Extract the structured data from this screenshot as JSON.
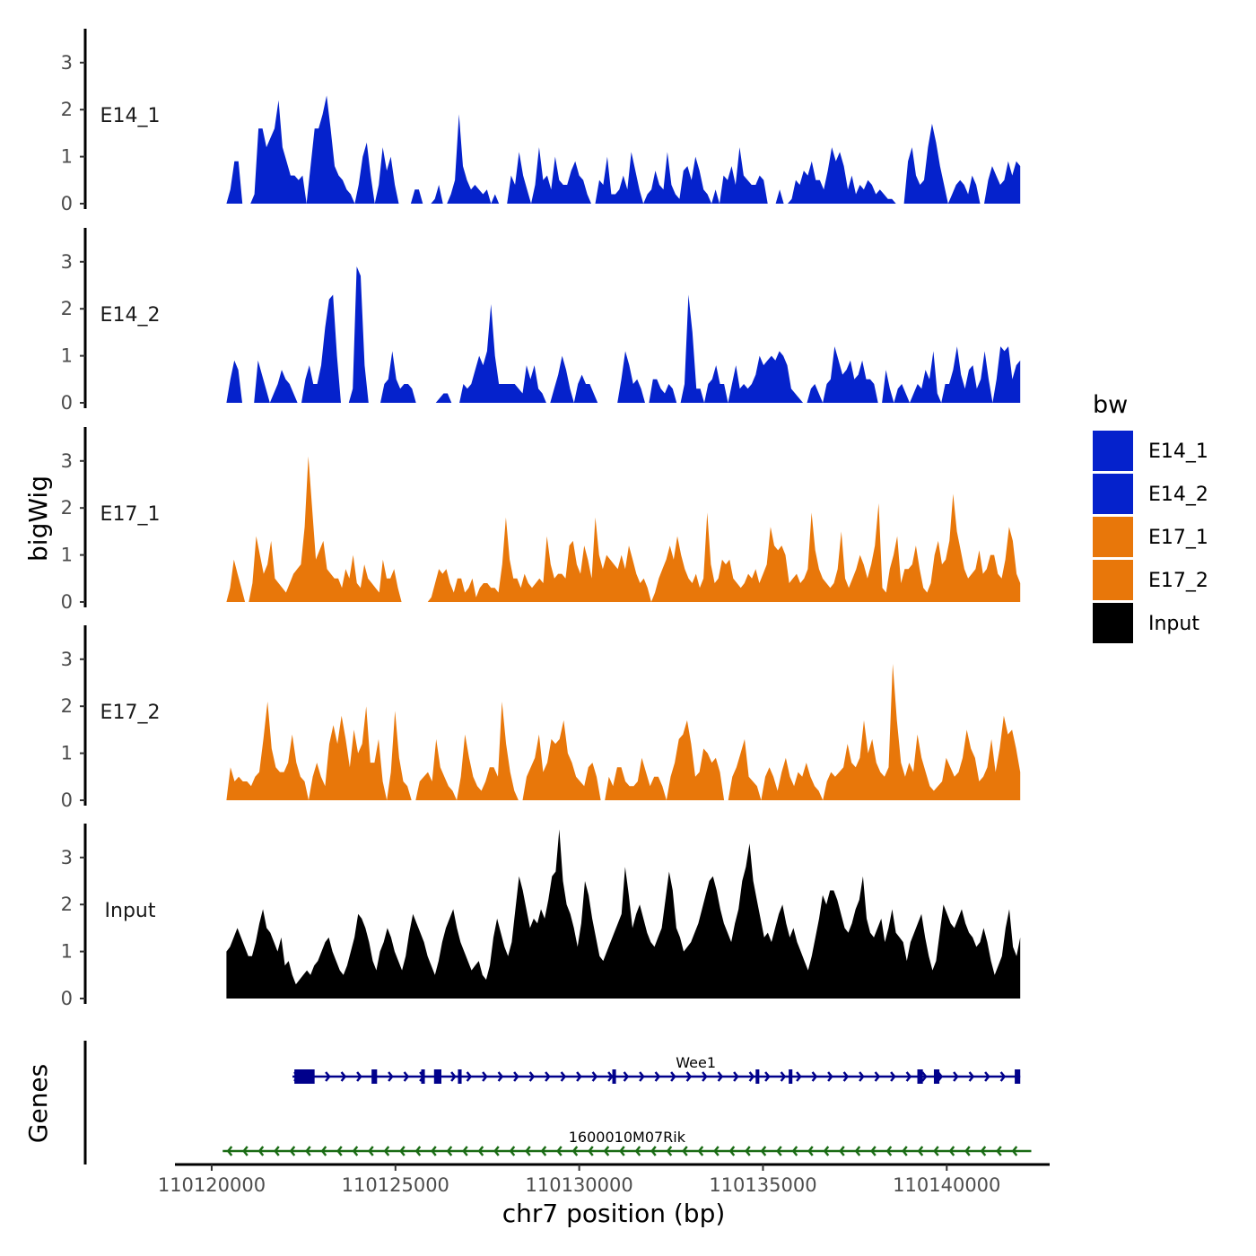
{
  "chart_data": {
    "type": "area",
    "ylabel": "bigWig",
    "xlabel": "chr7 position (bp)",
    "genes_panel_label": "Genes",
    "xlim": [
      110119000,
      110142800
    ],
    "x_ticks": [
      110120000,
      110125000,
      110130000,
      110135000,
      110140000
    ],
    "x_tick_labels": [
      "110120000",
      "110125000",
      "110130000",
      "110135000",
      "110140000"
    ],
    "ylim": [
      0,
      3.8
    ],
    "y_ticks": [
      0,
      1,
      2,
      3
    ],
    "y_tick_labels": [
      "0",
      "1",
      "2",
      "3"
    ],
    "signal_range": [
      110120400,
      110142000
    ],
    "legend": {
      "title": "bw",
      "entries": [
        {
          "name": "E14_1",
          "color": "#0522CC"
        },
        {
          "name": "E14_2",
          "color": "#0522CC"
        },
        {
          "name": "E17_1",
          "color": "#E8770A"
        },
        {
          "name": "E17_2",
          "color": "#E8770A"
        },
        {
          "name": "Input",
          "color": "#000000"
        }
      ]
    },
    "series": [
      {
        "name": "E14_1",
        "color": "#0522CC",
        "values": [
          0,
          0.3,
          0.9,
          0.9,
          0,
          0,
          0,
          0.2,
          1.6,
          1.6,
          1.2,
          1.4,
          1.6,
          2.2,
          1.2,
          0.9,
          0.6,
          0.6,
          0.5,
          0.6,
          0,
          0.8,
          1.6,
          1.6,
          1.9,
          2.3,
          1.6,
          0.8,
          0.6,
          0.5,
          0.3,
          0.2,
          0,
          0.4,
          1,
          1.3,
          0.6,
          0,
          0.4,
          1.2,
          0.7,
          1,
          0.4,
          0,
          0,
          0,
          0,
          0.3,
          0.3,
          0,
          0,
          0,
          0.1,
          0.4,
          0,
          0,
          0.2,
          0.5,
          1.9,
          0.8,
          0.5,
          0.3,
          0.4,
          0.3,
          0.2,
          0.3,
          0,
          0.2,
          0,
          0,
          0,
          0.6,
          0.4,
          1.1,
          0.6,
          0.3,
          0,
          0.4,
          1.2,
          0.5,
          0.6,
          0.3,
          1,
          0.5,
          0.4,
          0.4,
          0.7,
          0.9,
          0.6,
          0.5,
          0.2,
          0,
          0,
          0.5,
          0.4,
          1,
          0.2,
          0.2,
          0.3,
          0.6,
          0.3,
          1.1,
          0.7,
          0.3,
          0,
          0.2,
          0.3,
          0.7,
          0.4,
          0.3,
          1.1,
          0.4,
          0.2,
          0.1,
          0.7,
          0.8,
          0.5,
          1,
          0.7,
          0.3,
          0.2,
          0,
          0.3,
          0,
          0.6,
          0.5,
          0.8,
          0.4,
          1.2,
          0.6,
          0.5,
          0.4,
          0.4,
          0.6,
          0.5,
          0,
          0,
          0,
          0.3,
          0,
          0,
          0.1,
          0.5,
          0.4,
          0.7,
          0.6,
          0.9,
          0.5,
          0.5,
          0.3,
          0.7,
          1.2,
          0.9,
          1.1,
          0.8,
          0.3,
          0.6,
          0.2,
          0.4,
          0.3,
          0.5,
          0.4,
          0.2,
          0.3,
          0.2,
          0.1,
          0.1,
          0,
          0,
          0,
          0.9,
          1.2,
          0.6,
          0.4,
          0.5,
          1.2,
          1.7,
          1.3,
          0.8,
          0.4,
          0,
          0.2,
          0.4,
          0.5,
          0.4,
          0.2,
          0.6,
          0.4,
          0,
          0,
          0.5,
          0.8,
          0.6,
          0.4,
          0.5,
          0.9,
          0.6,
          0.9,
          0.8
        ]
      },
      {
        "name": "E14_2",
        "color": "#0522CC",
        "values": [
          0,
          0.5,
          0.9,
          0.7,
          0,
          0,
          0,
          0,
          0.9,
          0.6,
          0.3,
          0,
          0.2,
          0.4,
          0.7,
          0.5,
          0.4,
          0.2,
          0,
          0,
          0.5,
          0.8,
          0.4,
          0.4,
          0.8,
          1.6,
          2.2,
          2.3,
          1,
          0,
          0,
          0,
          0.3,
          2.9,
          2.7,
          0.8,
          0,
          0,
          0,
          0,
          0.4,
          0.5,
          1.1,
          0.5,
          0.3,
          0.4,
          0.4,
          0.3,
          0,
          0,
          0,
          0,
          0,
          0,
          0.1,
          0.2,
          0.2,
          0,
          0,
          0,
          0.4,
          0.3,
          0.4,
          0.7,
          1,
          0.8,
          1.1,
          2.1,
          1,
          0.4,
          0.4,
          0.4,
          0.4,
          0.4,
          0.3,
          0.2,
          0.8,
          0.5,
          0.8,
          0.3,
          0.2,
          0,
          0,
          0.3,
          0.6,
          1,
          0.7,
          0.3,
          0,
          0.4,
          0.6,
          0.4,
          0.4,
          0.2,
          0,
          0,
          0,
          0,
          0,
          0,
          0.5,
          1.1,
          0.8,
          0.4,
          0.5,
          0.3,
          0,
          0,
          0.5,
          0.5,
          0.3,
          0.2,
          0.4,
          0.3,
          0,
          0,
          0.4,
          2.3,
          1.5,
          0.3,
          0.3,
          0,
          0.4,
          0.5,
          0.8,
          0.4,
          0.4,
          0,
          0.4,
          0.8,
          0.3,
          0.4,
          0.3,
          0.4,
          0.6,
          1,
          0.8,
          0.9,
          1,
          0.9,
          1.1,
          1,
          0.8,
          0.3,
          0.2,
          0.1,
          0,
          0,
          0.3,
          0.4,
          0.2,
          0,
          0.4,
          0.5,
          1.2,
          0.9,
          0.6,
          0.7,
          0.9,
          0.5,
          0.6,
          0.9,
          0.5,
          0.5,
          0.4,
          0,
          0,
          0.7,
          0.3,
          0,
          0.3,
          0.4,
          0.2,
          0,
          0.2,
          0.4,
          0.3,
          0.7,
          0.5,
          1.1,
          0.2,
          0,
          0.4,
          0.4,
          0.7,
          1.2,
          0.6,
          0.3,
          0.7,
          0.8,
          0.3,
          0.5,
          1.1,
          0.5,
          0,
          0.5,
          1.2,
          1.1,
          1.2,
          0.5,
          0.8,
          0.9
        ]
      },
      {
        "name": "E17_1",
        "color": "#E8770A",
        "values": [
          0,
          0.3,
          0.9,
          0.6,
          0.3,
          0,
          0,
          0.4,
          1.4,
          1,
          0.6,
          0.8,
          1.3,
          0.5,
          0.4,
          0.3,
          0.2,
          0.4,
          0.6,
          0.7,
          0.8,
          1.6,
          3.1,
          2,
          0.9,
          1.1,
          1.3,
          0.7,
          0.6,
          0.5,
          0.5,
          0.3,
          0.7,
          0.5,
          1,
          0.4,
          0.3,
          0.8,
          0.5,
          0.4,
          0.3,
          0.2,
          0.9,
          0.5,
          0.5,
          0.7,
          0.3,
          0,
          0,
          0,
          0,
          0,
          0,
          0,
          0,
          0.1,
          0.4,
          0.7,
          0.6,
          0.7,
          0.4,
          0.2,
          0.5,
          0.5,
          0.2,
          0.3,
          0.5,
          0.1,
          0.3,
          0.4,
          0.4,
          0.3,
          0.3,
          0.2,
          0.8,
          1.8,
          0.9,
          0.5,
          0.5,
          0.3,
          0.6,
          0.4,
          0.3,
          0.4,
          0.5,
          0.4,
          1.4,
          0.8,
          0.5,
          0.6,
          0.6,
          0.5,
          1.2,
          1.3,
          0.8,
          0.6,
          1.2,
          0.9,
          0.5,
          1.8,
          1,
          0.7,
          1,
          0.9,
          0.8,
          0.7,
          1,
          0.7,
          1.2,
          0.9,
          0.6,
          0.4,
          0.5,
          0.3,
          0,
          0.2,
          0.5,
          0.7,
          0.9,
          1.2,
          0.9,
          1.4,
          1,
          0.7,
          0.5,
          0.4,
          0.6,
          0.3,
          0.5,
          1.9,
          0.8,
          0.4,
          0.5,
          0.9,
          0.8,
          0.9,
          0.5,
          0.4,
          0.3,
          0.4,
          0.6,
          0.5,
          0.7,
          0.4,
          0.6,
          0.8,
          1.6,
          1.2,
          1.1,
          1.2,
          1,
          0.4,
          0.5,
          0.6,
          0.4,
          0.5,
          0.7,
          1.9,
          1.1,
          0.7,
          0.5,
          0.4,
          0.3,
          0.4,
          0.7,
          1.5,
          0.5,
          0.3,
          0.5,
          0.7,
          1,
          0.8,
          0.5,
          0.8,
          1.2,
          2.1,
          0.3,
          0.2,
          0.7,
          1,
          1.4,
          0.4,
          0.7,
          0.7,
          0.8,
          1.2,
          0.7,
          0.3,
          0.2,
          0.4,
          1,
          1.3,
          0.8,
          0.9,
          1.3,
          2.3,
          1.5,
          1.1,
          0.7,
          0.5,
          0.6,
          0.7,
          1.1,
          0.6,
          0.7,
          1,
          1,
          0.6,
          0.5,
          0.9,
          1.6,
          1.3,
          0.6,
          0.4
        ]
      },
      {
        "name": "E17_2",
        "color": "#E8770A",
        "values": [
          0,
          0.7,
          0.4,
          0.5,
          0.4,
          0.4,
          0.3,
          0.5,
          0.6,
          1.3,
          2.1,
          1.1,
          0.7,
          0.6,
          0.6,
          0.8,
          1.4,
          0.8,
          0.5,
          0.4,
          0,
          0.5,
          0.8,
          0.5,
          0.3,
          1.2,
          1.6,
          1.2,
          1.8,
          1.3,
          0.7,
          1.5,
          1,
          1.2,
          2,
          0.8,
          0.8,
          1.3,
          0.4,
          0,
          0.6,
          1.9,
          0.9,
          0.4,
          0.3,
          0,
          0,
          0.4,
          0.5,
          0.6,
          0.4,
          1.3,
          0.7,
          0.5,
          0.3,
          0.2,
          0,
          0.5,
          1.4,
          0.9,
          0.5,
          0.3,
          0.2,
          0.4,
          0.7,
          0.7,
          0.5,
          2.1,
          1.2,
          0.6,
          0.2,
          0,
          0,
          0.5,
          0.7,
          0.9,
          1.4,
          0.6,
          0.8,
          1.3,
          1.2,
          1.3,
          1.7,
          1,
          0.8,
          0.5,
          0.4,
          0.3,
          0.7,
          0.8,
          0.5,
          0,
          0,
          0.5,
          0.3,
          0.7,
          0.7,
          0.4,
          0.3,
          0.3,
          0.4,
          0.9,
          0.6,
          0.3,
          0.5,
          0.5,
          0.3,
          0,
          0.5,
          0.8,
          1.3,
          1.4,
          1.7,
          1.2,
          0.5,
          0.6,
          1.1,
          1,
          0.8,
          0.9,
          0.6,
          0,
          0,
          0.5,
          0.7,
          1,
          1.3,
          0.5,
          0.4,
          0.3,
          0,
          0.5,
          0.7,
          0.5,
          0.2,
          0.6,
          0.9,
          0.5,
          0.3,
          0.6,
          0.5,
          0.8,
          0.5,
          0.3,
          0.2,
          0,
          0.4,
          0.6,
          0.5,
          0.6,
          0.7,
          1.2,
          0.8,
          0.7,
          0.9,
          1.7,
          1,
          1.3,
          0.8,
          0.6,
          0.5,
          0.7,
          2.9,
          1.7,
          0.8,
          0.5,
          0.8,
          0.6,
          1.4,
          0.9,
          0.6,
          0.3,
          0.2,
          0.3,
          0.4,
          0.9,
          0.7,
          0.5,
          0.6,
          0.9,
          1.5,
          1.1,
          0.9,
          0.4,
          0.5,
          0.7,
          1.3,
          0.6,
          1.1,
          1.8,
          1.4,
          1.5,
          1.1,
          0.6
        ]
      },
      {
        "name": "Input",
        "color": "#000000",
        "values": [
          1,
          1.1,
          1.3,
          1.5,
          1.3,
          1.1,
          0.9,
          0.9,
          1.2,
          1.6,
          1.9,
          1.5,
          1.4,
          1.2,
          1,
          1.3,
          0.7,
          0.8,
          0.5,
          0.3,
          0.4,
          0.5,
          0.6,
          0.5,
          0.7,
          0.8,
          1,
          1.2,
          1.3,
          1,
          0.8,
          0.6,
          0.5,
          0.7,
          1,
          1.3,
          1.8,
          1.7,
          1.5,
          1.2,
          0.8,
          0.6,
          1,
          1.2,
          1.5,
          1.3,
          1,
          0.8,
          0.6,
          0.9,
          1.4,
          1.8,
          1.6,
          1.4,
          1.2,
          0.9,
          0.7,
          0.5,
          0.8,
          1.2,
          1.5,
          1.7,
          1.9,
          1.5,
          1.2,
          1,
          0.8,
          0.6,
          0.7,
          0.8,
          0.5,
          0.4,
          0.7,
          1.3,
          1.7,
          1.4,
          1.1,
          0.9,
          1.2,
          1.9,
          2.6,
          2.3,
          1.9,
          1.5,
          1.7,
          1.6,
          1.9,
          1.7,
          2.1,
          2.6,
          2.7,
          3.6,
          2.5,
          2,
          1.8,
          1.5,
          1.1,
          1.6,
          2.5,
          2.2,
          1.7,
          1.3,
          0.9,
          0.8,
          1,
          1.2,
          1.4,
          1.6,
          1.8,
          2.8,
          2.2,
          1.5,
          1.8,
          2,
          1.7,
          1.4,
          1.2,
          1.1,
          1.3,
          1.5,
          2.1,
          2.7,
          2.3,
          1.5,
          1.3,
          1,
          1.1,
          1.2,
          1.4,
          1.6,
          1.9,
          2.2,
          2.5,
          2.6,
          2.3,
          1.9,
          1.6,
          1.4,
          1.2,
          1.6,
          1.9,
          2.5,
          2.8,
          3.3,
          2.5,
          2.1,
          1.7,
          1.3,
          1.4,
          1.2,
          1.5,
          1.8,
          2,
          1.6,
          1.3,
          1.5,
          1.2,
          1,
          0.8,
          0.6,
          0.9,
          1.3,
          1.7,
          2.2,
          2,
          2.3,
          2.3,
          2.1,
          1.8,
          1.5,
          1.4,
          1.6,
          1.9,
          2.1,
          2.6,
          1.7,
          1.4,
          1.3,
          1.5,
          1.7,
          1.2,
          1.5,
          1.9,
          1.4,
          1.3,
          1.2,
          0.8,
          1.2,
          1.4,
          1.6,
          1.8,
          1.3,
          0.9,
          0.6,
          0.8,
          1.4,
          2,
          1.8,
          1.6,
          1.5,
          1.7,
          1.9,
          1.6,
          1.4,
          1.3,
          1.1,
          1.2,
          1.5,
          1.2,
          0.8,
          0.5,
          0.7,
          0.9,
          1.5,
          1.9,
          1.1,
          0.9,
          1.3
        ]
      }
    ],
    "genes": [
      {
        "name": "Wee1",
        "strand": "+",
        "color": "#00008B",
        "start": 110122200,
        "end": 110142000,
        "exons": [
          [
            110122250,
            110122800
          ],
          [
            110124350,
            110124500
          ],
          [
            110125700,
            110125800
          ],
          [
            110126050,
            110126250
          ],
          [
            110126700,
            110126800
          ],
          [
            110130900,
            110131000
          ],
          [
            110134800,
            110134900
          ],
          [
            110135700,
            110135800
          ],
          [
            110139200,
            110139350
          ],
          [
            110139650,
            110139800
          ],
          [
            110141850,
            110142000
          ]
        ]
      },
      {
        "name": "1600010M07Rik",
        "strand": "-",
        "color": "#1A6B14",
        "start": 110120300,
        "end": 110142300,
        "exons": []
      }
    ]
  }
}
